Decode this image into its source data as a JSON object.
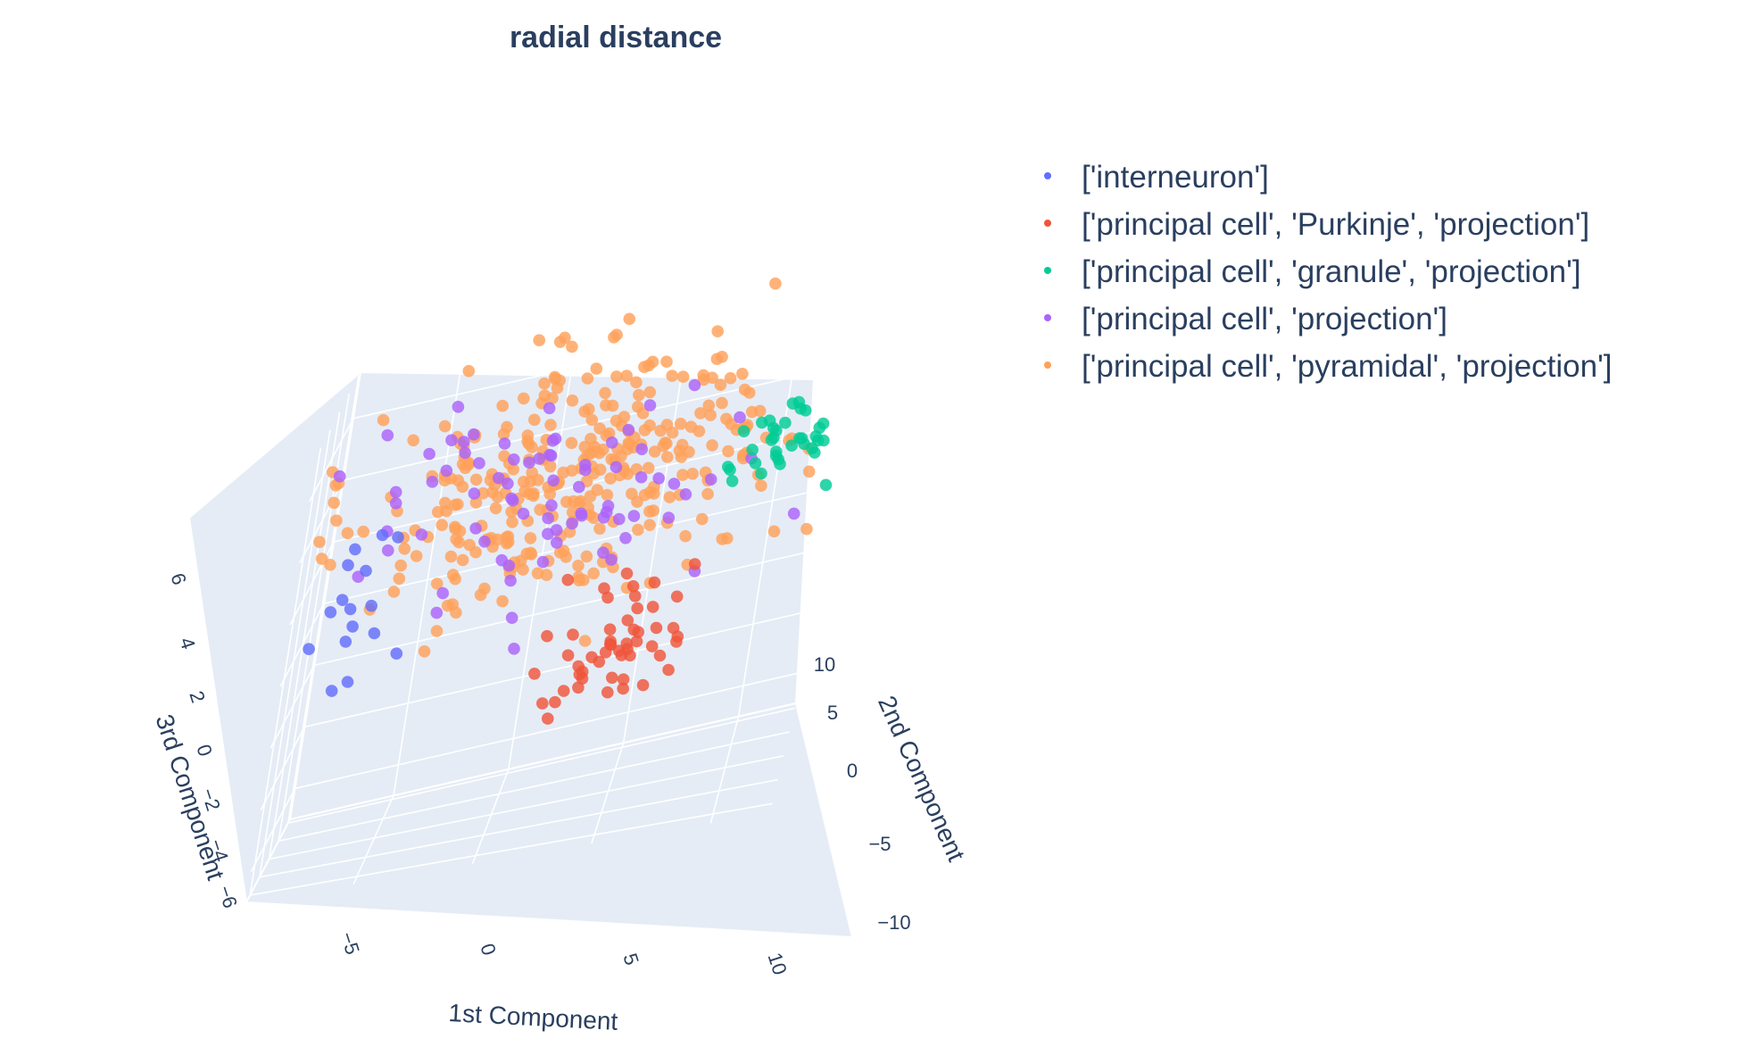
{
  "chart_data": {
    "type": "scatter",
    "subtype": "scatter3d",
    "title": "radial distance",
    "axes": {
      "x": {
        "title": "1st Component",
        "ticks": [
          "−5",
          "0",
          "5",
          "10"
        ],
        "range": [
          -9.5,
          12.5
        ]
      },
      "y": {
        "title": "2nd Component",
        "ticks": [
          "−10",
          "−5",
          "0",
          "5",
          "10"
        ],
        "range": [
          -12,
          11
        ]
      },
      "z": {
        "title": "3rd Component",
        "ticks": [
          "−6",
          "−4",
          "−2",
          "0",
          "2",
          "4",
          "6"
        ],
        "range": [
          -7,
          7.5
        ]
      }
    },
    "background_color": "#E5ECF6",
    "grid": true,
    "legend_position": "top-right",
    "series": [
      {
        "name": "['interneuron']",
        "color": "#636EFA"
      },
      {
        "name": "['principal cell', 'Purkinje', 'projection']",
        "color": "#EF553B"
      },
      {
        "name": "['principal cell', 'granule', 'projection']",
        "color": "#00CC96"
      },
      {
        "name": "['principal cell', 'projection']",
        "color": "#AB63FA"
      },
      {
        "name": "['principal cell', 'pyramidal', 'projection']",
        "color": "#FFA15A"
      }
    ]
  }
}
